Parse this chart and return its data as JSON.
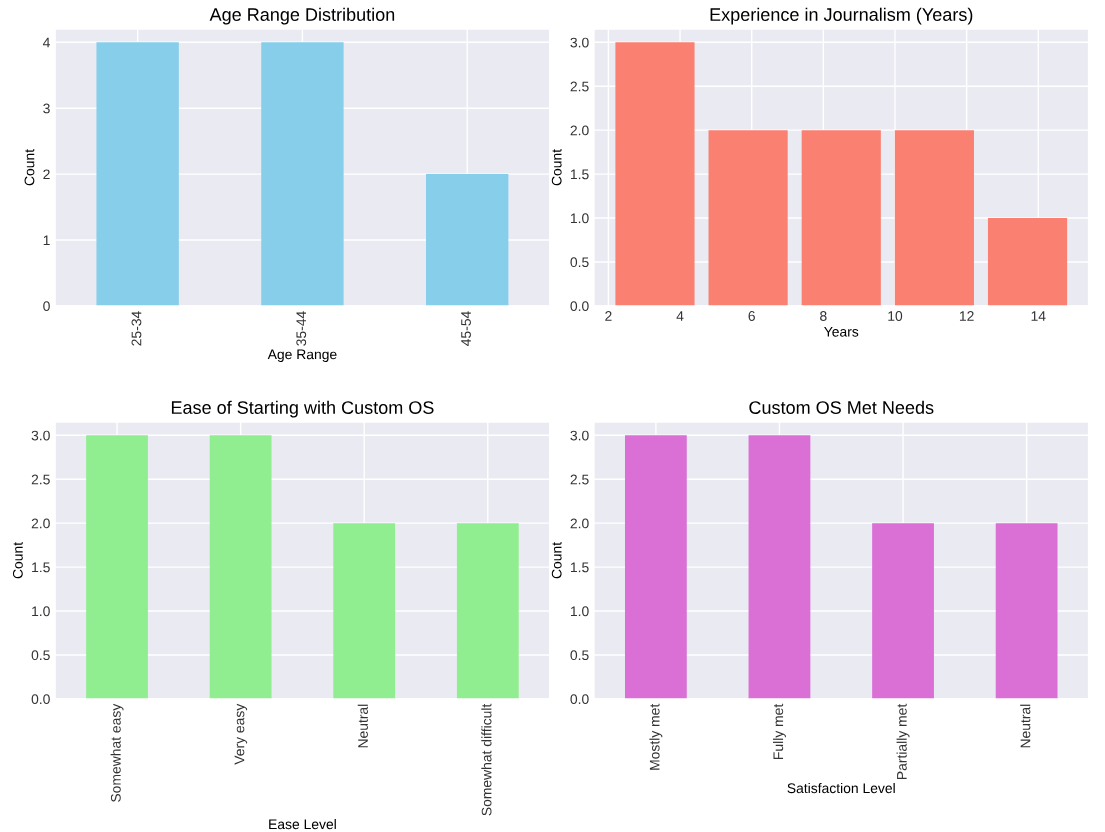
{
  "chart_data": [
    {
      "type": "bar",
      "title": "Age Range Distribution",
      "xlabel": "Age Range",
      "ylabel": "Count",
      "categories": [
        "25-34",
        "35-44",
        "45-54"
      ],
      "values": [
        4,
        4,
        2
      ],
      "color": "#87ceeb",
      "ylim": [
        0,
        4.2
      ],
      "yticks": [
        0,
        1,
        2,
        3,
        4
      ],
      "grid": true
    },
    {
      "type": "histogram",
      "title": "Experience in Journalism (Years)",
      "xlabel": "Years",
      "ylabel": "Count",
      "bins": [
        2,
        4.6,
        7.2,
        9.8,
        12.4,
        15
      ],
      "values": [
        3,
        2,
        2,
        2,
        1
      ],
      "color": "#fa8072",
      "xlim": [
        1.6,
        15.4
      ],
      "xticks": [
        2,
        4,
        6,
        8,
        10,
        12,
        14
      ],
      "ylim": [
        0,
        3.15
      ],
      "yticks": [
        {
          "value": 0,
          "label": "0.0"
        },
        0.5,
        {
          "value": 1,
          "label": "1.0"
        },
        1.5,
        {
          "value": 2,
          "label": "2.0"
        },
        2.5,
        {
          "value": 3,
          "label": "3.0"
        }
      ],
      "grid": true
    },
    {
      "type": "bar",
      "title": "Ease of Starting with Custom OS",
      "xlabel": "Ease Level",
      "ylabel": "Count",
      "categories": [
        "Somewhat easy",
        "Very easy",
        "Neutral",
        "Somewhat difficult"
      ],
      "values": [
        3,
        3,
        2,
        2
      ],
      "color": "#90ee90",
      "ylim": [
        0,
        3.15
      ],
      "yticks": [
        {
          "value": 0,
          "label": "0.0"
        },
        0.5,
        {
          "value": 1,
          "label": "1.0"
        },
        1.5,
        {
          "value": 2,
          "label": "2.0"
        },
        2.5,
        {
          "value": 3,
          "label": "3.0"
        }
      ],
      "grid": true
    },
    {
      "type": "bar",
      "title": "Custom OS Met Needs",
      "xlabel": "Satisfaction Level",
      "ylabel": "Count",
      "categories": [
        "Mostly met",
        "Fully met",
        "Partially met",
        "Neutral"
      ],
      "values": [
        3,
        3,
        2,
        2
      ],
      "color": "#da70d6",
      "ylim": [
        0,
        3.15
      ],
      "yticks": [
        {
          "value": 0,
          "label": "0.0"
        },
        0.5,
        {
          "value": 1,
          "label": "1.0"
        },
        1.5,
        {
          "value": 2,
          "label": "2.0"
        },
        2.5,
        {
          "value": 3,
          "label": "3.0"
        }
      ],
      "grid": true
    }
  ]
}
